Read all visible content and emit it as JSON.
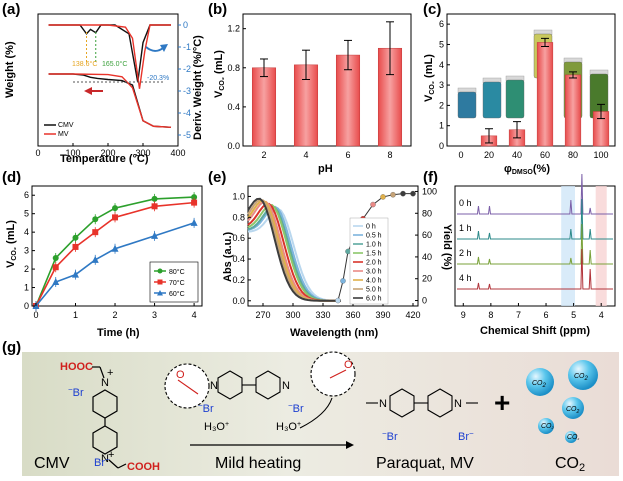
{
  "panels": {
    "a": "(a)",
    "b": "(b)",
    "c": "(c)",
    "d": "(d)",
    "e": "(e)",
    "f": "(f)",
    "g": "(g)"
  },
  "chart_data": [
    {
      "id": "a",
      "type": "line",
      "xlabel": "Temperature (°C)",
      "ylabel": "Weight (%)",
      "y2label": "Deriv. Weight (%/°C)",
      "xticks": [
        "0",
        "100",
        "200",
        "300",
        "400"
      ],
      "y2ticks": [
        "0",
        "-1",
        "-2",
        "-3",
        "-4",
        "-5"
      ],
      "xlim": [
        0,
        400
      ],
      "y2lim": [
        -5.5,
        0.5
      ],
      "annotations": [
        "138.6°C",
        "165.0°C",
        "-20.3%"
      ],
      "series": [
        {
          "name": "CMV",
          "color": "#111111",
          "weight_x": [
            30,
            100,
            130,
            150,
            170,
            200,
            240,
            270,
            300,
            330,
            380
          ],
          "deriv_x": [
            30,
            120,
            138.6,
            150,
            165,
            180,
            220,
            260,
            285,
            300,
            320,
            380
          ],
          "deriv_y": [
            0,
            0,
            -0.4,
            -0.2,
            -0.35,
            0,
            0,
            -0.4,
            -2.6,
            -0.8,
            0,
            0
          ]
        },
        {
          "name": "MV",
          "color": "#e8332a",
          "weight_x": [
            30,
            100,
            200,
            240,
            270,
            300,
            330,
            380
          ],
          "deriv_x": [
            30,
            200,
            250,
            270,
            290,
            305,
            320,
            380
          ],
          "deriv_y": [
            0,
            0,
            -0.1,
            -0.6,
            -2.9,
            -1.2,
            0,
            0
          ]
        }
      ]
    },
    {
      "id": "b",
      "type": "bar",
      "xlabel": "pH",
      "ylabel": "V_CO2 (mL)",
      "categories": [
        "2",
        "4",
        "6",
        "8"
      ],
      "values": [
        0.8,
        0.83,
        0.93,
        1.0
      ],
      "errors": [
        0.09,
        0.15,
        0.15,
        0.27
      ],
      "yticks": [
        "0.0",
        "0.4",
        "0.8",
        "1.2"
      ],
      "ylim": [
        0,
        1.35
      ]
    },
    {
      "id": "c",
      "type": "bar",
      "xlabel": "φ_DMSO (%)",
      "ylabel": "V_CO2 (mL)",
      "categories": [
        "0",
        "20",
        "40",
        "60",
        "80",
        "100"
      ],
      "values": [
        0,
        0.5,
        0.8,
        5.1,
        3.5,
        1.7
      ],
      "errors": [
        0,
        0.35,
        0.4,
        0.2,
        0.15,
        0.35
      ],
      "yticks": [
        "0",
        "1",
        "2",
        "3",
        "4",
        "5",
        "6"
      ],
      "ylim": [
        0,
        6.5
      ]
    },
    {
      "id": "d",
      "type": "line",
      "xlabel": "Time (h)",
      "ylabel": "V_CO2 (mL)",
      "x": [
        0,
        0.5,
        1,
        1.5,
        2,
        3,
        4
      ],
      "xticks": [
        "0",
        "1",
        "2",
        "3",
        "4"
      ],
      "yticks": [
        "0",
        "1",
        "2",
        "3",
        "4",
        "5",
        "6"
      ],
      "xlim": [
        -0.1,
        4.2
      ],
      "ylim": [
        0,
        6.5
      ],
      "series": [
        {
          "name": "80°C",
          "color": "#2ca02c",
          "marker": "circle",
          "values": [
            0,
            2.6,
            3.7,
            4.7,
            5.3,
            5.8,
            5.9
          ]
        },
        {
          "name": "70°C",
          "color": "#e8332a",
          "marker": "square",
          "values": [
            0,
            2.1,
            3.2,
            4.0,
            4.8,
            5.4,
            5.6
          ]
        },
        {
          "name": "60°C",
          "color": "#2f79c4",
          "marker": "triangle",
          "values": [
            0,
            1.3,
            1.7,
            2.5,
            3.1,
            3.8,
            4.5
          ]
        }
      ]
    },
    {
      "id": "e",
      "type": "line",
      "xlabel": "Wavelength (nm)",
      "ylabel": "Abs (a.u.)",
      "y2label": "Yield (%)",
      "xticks": [
        "270",
        "300",
        "330",
        "360",
        "390",
        "420"
      ],
      "yticks": [
        "0.0",
        "0.2",
        "0.4",
        "0.6",
        "0.8",
        "1.0"
      ],
      "y2ticks": [
        "0",
        "20",
        "40",
        "60",
        "80",
        "100"
      ],
      "xlim": [
        255,
        425
      ],
      "ylim": [
        -0.05,
        1.1
      ],
      "y2lim": [
        -5,
        105
      ],
      "legend": [
        "0 h",
        "0.5 h",
        "1.0 h",
        "1.5 h",
        "2.0 h",
        "3.0 h",
        "4.0 h",
        "5.0 h",
        "6.0 h"
      ],
      "legend_colors": [
        "#b9d7ee",
        "#7db4de",
        "#5da9a0",
        "#8cc66b",
        "#d9342b",
        "#e98a86",
        "#e0b04a",
        "#c6a377",
        "#3d3d3d"
      ],
      "yield_x": [
        345,
        350,
        355,
        360,
        370,
        380,
        390,
        400,
        410,
        420
      ],
      "yield_y": [
        0,
        18,
        45,
        55,
        75,
        88,
        95,
        97,
        98,
        98
      ]
    },
    {
      "id": "f",
      "type": "line",
      "xlabel": "Chemical Shift (ppm)",
      "xticks": [
        "9",
        "8",
        "7",
        "6",
        "5",
        "4"
      ],
      "xlim": [
        9.3,
        3.5
      ],
      "spectra": [
        "0 h",
        "1 h",
        "2 h",
        "4 h"
      ],
      "spectra_colors": [
        "#7b5fa8",
        "#2b8a8a",
        "#7aa23a",
        "#b2343b"
      ]
    }
  ],
  "scheme": {
    "cmv": "CMV",
    "heating": "Mild heating",
    "mv": "Paraquat, MV",
    "co2": "CO",
    "co2_sub": "2",
    "plus": "+",
    "hooc": "HOOC",
    "cooh": "COOH",
    "br": "Br",
    "h3o": "H₃O",
    "bubble": "CO"
  }
}
